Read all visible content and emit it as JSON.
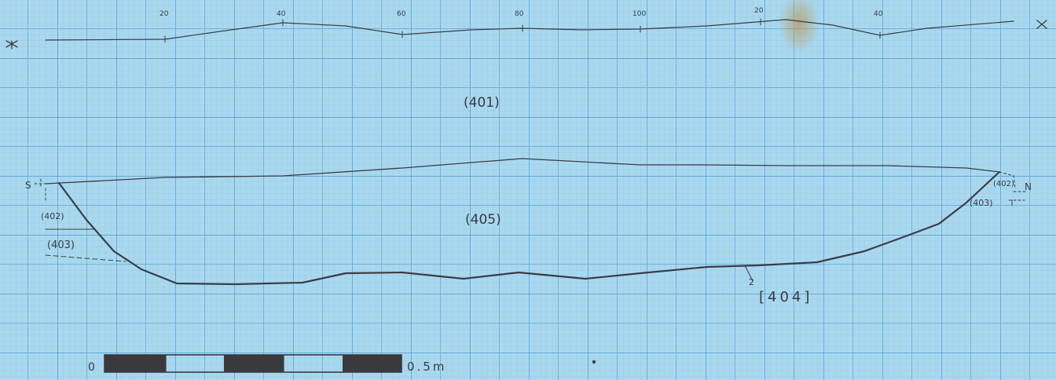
{
  "drawing": {
    "ruler": {
      "tick_labels": [
        "20",
        "40",
        "60",
        "80",
        "100",
        "20",
        "40"
      ],
      "start_marker": "X",
      "end_marker": "X"
    },
    "ends": {
      "left": "S",
      "right": "N"
    },
    "contexts": {
      "c401": "(401)",
      "c405": "(405)",
      "c402_left": "(402)",
      "c403_left": "(403)",
      "c402_right": "(402)",
      "c403_right": "(403)",
      "cut": "[404]",
      "cut_pointer": "2"
    },
    "scale_bar": {
      "start_label": "0",
      "end_label": "0.5m"
    }
  },
  "colors": {
    "paper": "#a9d8ee",
    "grid_fine": "#8cc3e3",
    "grid_major": "#3f8fcf",
    "pencil": "#3c3c44",
    "stain": "#b89a5a"
  }
}
